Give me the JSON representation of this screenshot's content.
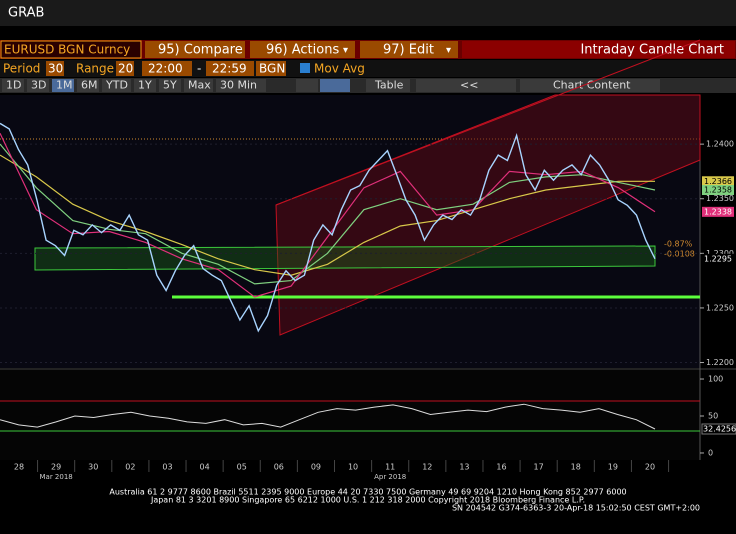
{
  "header": {
    "title": "GRAB"
  },
  "toolbar": {
    "security": "EURUSD BGN Curncy",
    "compare": "95) Compare",
    "actions": "96) Actions",
    "edit": "97) Edit",
    "chart_title": "Intraday Candle Chart"
  },
  "settings": {
    "period_label": "Period",
    "period": "30",
    "range_label": "Range",
    "range": "20",
    "start": "22:00",
    "dash": "-",
    "end": "22:59",
    "source": "BGN",
    "mov_avg": "Mov Avg"
  },
  "buttons": [
    "1D",
    "3D",
    "1M",
    "6M",
    "YTD",
    "1Y",
    "5Y",
    "Max",
    "30 Min"
  ],
  "table_button": "Table",
  "nav_button": "<<",
  "chart_content": "Chart Content",
  "price_panel": {
    "ylim": [
      1.2195,
      1.2445
    ],
    "yticks": [
      {
        "value": 1.24,
        "label": "1.2400"
      },
      {
        "value": 1.235,
        "label": "1.2350"
      },
      {
        "value": 1.23,
        "label": "1.2300"
      },
      {
        "value": 1.225,
        "label": "1.2250"
      },
      {
        "value": 1.22,
        "label": "1.2200"
      }
    ],
    "price": {
      "color": "#a8d4ff",
      "values": [
        1.2419,
        1.2414,
        1.2395,
        1.2381,
        1.2349,
        1.2312,
        1.2307,
        1.2298,
        1.2321,
        1.2317,
        1.2326,
        1.2319,
        1.2326,
        1.2321,
        1.2335,
        1.2317,
        1.2312,
        1.228,
        1.2266,
        1.2284,
        1.2298,
        1.2307,
        1.2286,
        1.228,
        1.2275,
        1.2257,
        1.2239,
        1.2252,
        1.2229,
        1.2243,
        1.2271,
        1.2284,
        1.2275,
        1.228,
        1.2312,
        1.2326,
        1.2317,
        1.234,
        1.2358,
        1.2362,
        1.2376,
        1.2385,
        1.2394,
        1.2372,
        1.2349,
        1.2335,
        1.2312,
        1.2326,
        1.2335,
        1.2331,
        1.234,
        1.2335,
        1.2349,
        1.2376,
        1.239,
        1.2385,
        1.2408,
        1.2372,
        1.2358,
        1.2376,
        1.2367,
        1.2376,
        1.2381,
        1.2372,
        1.239,
        1.2381,
        1.2367,
        1.2349,
        1.2344,
        1.2335,
        1.2312,
        1.2295
      ]
    },
    "moving_averages": [
      {
        "color": "#d8c84a",
        "values": [
          1.239,
          1.237,
          1.2345,
          1.233,
          1.232,
          1.2308,
          1.2295,
          1.2285,
          1.228,
          1.229,
          1.231,
          1.2325,
          1.233,
          1.234,
          1.235,
          1.2358,
          1.2362,
          1.2366,
          1.2366
        ]
      },
      {
        "color": "#7fd07f",
        "values": [
          1.24,
          1.236,
          1.233,
          1.2322,
          1.2318,
          1.23,
          1.229,
          1.2272,
          1.2275,
          1.23,
          1.234,
          1.235,
          1.234,
          1.2345,
          1.2365,
          1.237,
          1.2372,
          1.2365,
          1.2358
        ]
      },
      {
        "color": "#e0307a",
        "values": [
          1.241,
          1.234,
          1.2318,
          1.232,
          1.231,
          1.2295,
          1.2285,
          1.226,
          1.227,
          1.2315,
          1.236,
          1.2375,
          1.2335,
          1.234,
          1.2375,
          1.2372,
          1.2375,
          1.236,
          1.2338
        ]
      }
    ],
    "change_pct": "-0.87%",
    "change_abs": "-0.0108"
  },
  "rsi_panel": {
    "ylim": [
      -9.5,
      112.2
    ],
    "yticks": [
      100,
      50,
      0
    ],
    "values": [
      45,
      38,
      35,
      42,
      50,
      48,
      52,
      55,
      50,
      47,
      42,
      40,
      45,
      38,
      40,
      35,
      45,
      55,
      60,
      58,
      62,
      65,
      60,
      52,
      55,
      58,
      56,
      62,
      66,
      60,
      58,
      55,
      60,
      52,
      45,
      32.4256
    ]
  },
  "x_axis": {
    "days": [
      "28",
      "29",
      "30",
      "02",
      "03",
      "04",
      "05",
      "06",
      "09",
      "10",
      "11",
      "12",
      "13",
      "16",
      "17",
      "18",
      "19",
      "20"
    ],
    "months": [
      "Mar 2018",
      "Apr 2018"
    ]
  },
  "footer": [
    "Australia 61 2 9777 8600 Brazil 5511 2395 9000 Europe 44 20 7330 7500 Germany 49 69 9204 1210 Hong Kong 852 2977 6000",
    "Japan 81 3 3201 8900      Singapore 65 6212 1000      U.S. 1 212 318 2000      Copyright 2018 Bloomberg Finance L.P.",
    "SN 204542 G374-6363-3 20-Apr-18 15:02:50 CEST GMT+2:00"
  ]
}
